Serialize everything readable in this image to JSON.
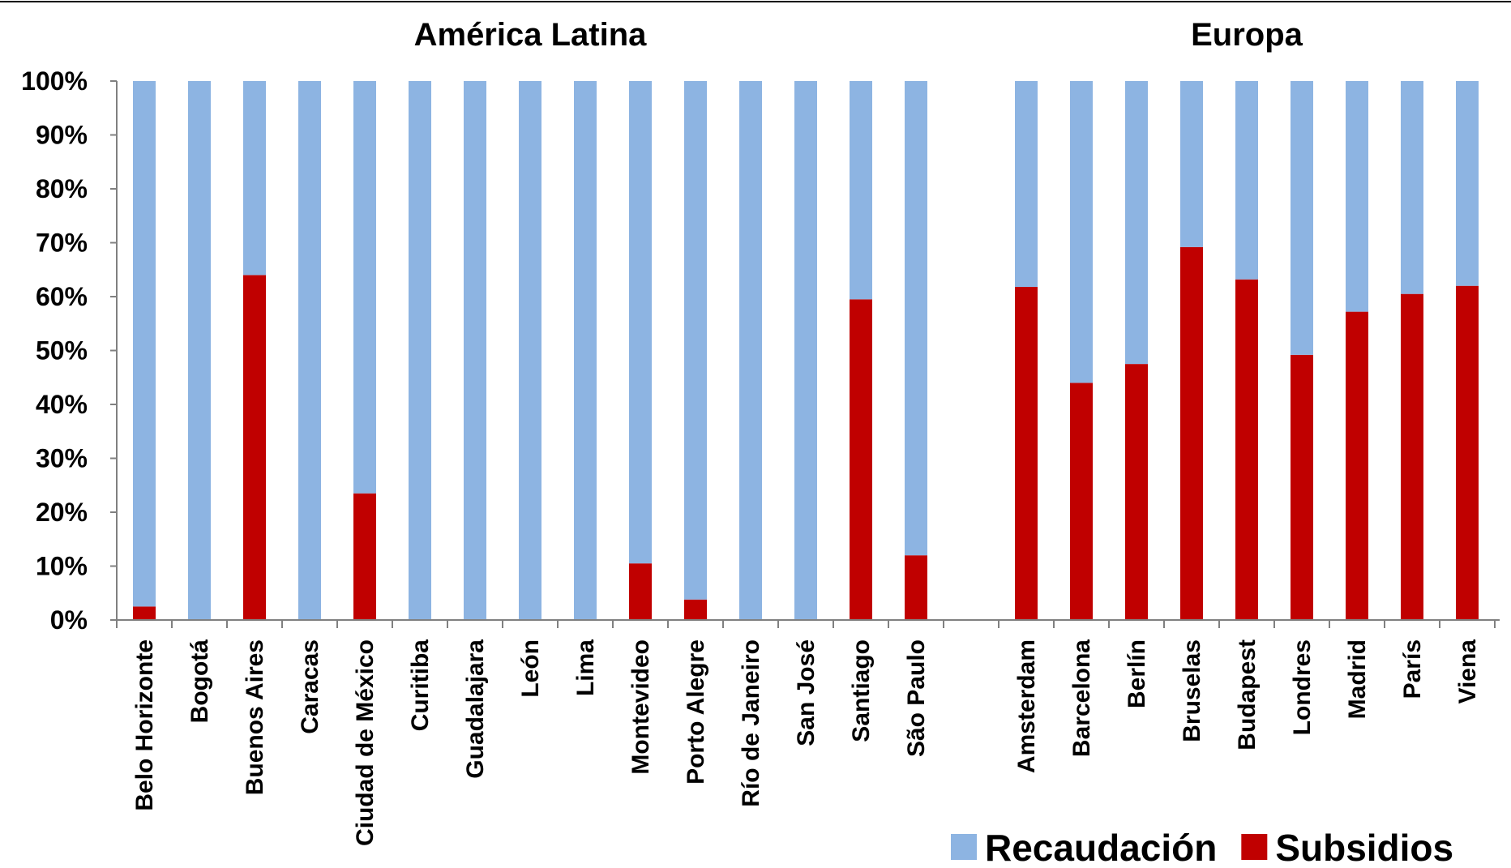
{
  "chart_data": {
    "type": "bar",
    "stacked": true,
    "groups": [
      {
        "label": "América Latina",
        "categories": [
          "Belo Horizonte",
          "Bogotá",
          "Buenos Aires",
          "Caracas",
          "Ciudad de México",
          "Curitiba",
          "Guadalajara",
          "León",
          "Lima",
          "Montevideo",
          "Porto Alegre",
          "Río de Janeiro",
          "San José",
          "Santiago",
          "São Paulo"
        ]
      },
      {
        "label": "Europa",
        "categories": [
          "Amsterdam",
          "Barcelona",
          "Berlín",
          "Bruselas",
          "Budapest",
          "Londres",
          "Madrid",
          "París",
          "Viena"
        ]
      }
    ],
    "categories": [
      "Belo Horizonte",
      "Bogotá",
      "Buenos Aires",
      "Caracas",
      "Ciudad de México",
      "Curitiba",
      "Guadalajara",
      "León",
      "Lima",
      "Montevideo",
      "Porto Alegre",
      "Río de Janeiro",
      "San José",
      "Santiago",
      "São Paulo",
      "Amsterdam",
      "Barcelona",
      "Berlín",
      "Bruselas",
      "Budapest",
      "Londres",
      "Madrid",
      "París",
      "Viena"
    ],
    "series": [
      {
        "name": "Subsidios",
        "color": "#C00000",
        "values": [
          2.5,
          0,
          64,
          0,
          23.5,
          0,
          0,
          0,
          0,
          10.5,
          3.8,
          0,
          0,
          59.5,
          12,
          61.8,
          44,
          47.5,
          69.2,
          63.2,
          49.2,
          57.2,
          60.5,
          62
        ]
      },
      {
        "name": "Recaudación",
        "color": "#8DB4E2",
        "values": [
          97.5,
          100,
          36,
          100,
          76.5,
          100,
          100,
          100,
          100,
          89.5,
          96.2,
          100,
          100,
          40.5,
          88,
          38.2,
          56,
          52.5,
          30.8,
          36.8,
          50.8,
          42.8,
          39.5,
          38
        ]
      }
    ],
    "y_ticks": [
      "0%",
      "10%",
      "20%",
      "30%",
      "40%",
      "50%",
      "60%",
      "70%",
      "80%",
      "90%",
      "100%"
    ],
    "ylim": [
      0,
      100
    ],
    "grid": false,
    "legend": {
      "position": "bottom-right",
      "items": [
        {
          "label": "Recaudación",
          "color": "#8DB4E2"
        },
        {
          "label": "Subsidios",
          "color": "#C00000"
        }
      ]
    }
  }
}
